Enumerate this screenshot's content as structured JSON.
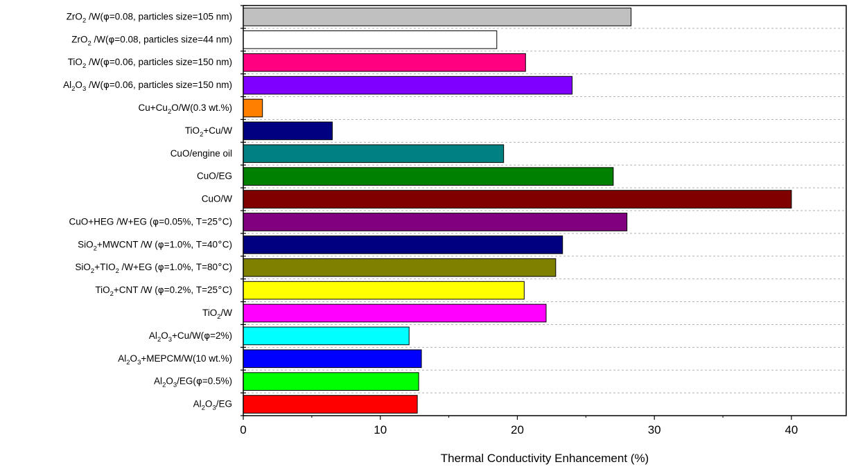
{
  "chart_data": {
    "type": "bar",
    "orientation": "horizontal",
    "xlabel": "Thermal Conductivity Enhancement (%)",
    "ylabel": "",
    "xlim": [
      0,
      44
    ],
    "xticks": [
      "0",
      "10",
      "20",
      "30",
      "40"
    ],
    "grid": "horizontal dashed",
    "legend": "none",
    "bars": [
      {
        "label": "ZrO₂/W(φ=0.08, particles size=105 nm)",
        "label_parts": [
          {
            "t": "ZrO"
          },
          {
            "t": "2",
            "sub": true
          },
          {
            "t": " /W("
          },
          {
            "t": "φ",
            "greek": true
          },
          {
            "t": "=0.08, particles size=105 nm)"
          }
        ],
        "value": 28.3,
        "color": "#c0c0c0"
      },
      {
        "label": "ZrO₂/W(φ=0.08, particles size=44 nm)",
        "label_parts": [
          {
            "t": "ZrO"
          },
          {
            "t": "2",
            "sub": true
          },
          {
            "t": " /W("
          },
          {
            "t": "φ",
            "greek": true
          },
          {
            "t": "=0.08, particles size=44 nm)"
          }
        ],
        "value": 18.5,
        "color": "#ffffff"
      },
      {
        "label": "TiO₂/W(φ=0.06, particles size=150 nm)",
        "label_parts": [
          {
            "t": "TiO"
          },
          {
            "t": "2",
            "sub": true
          },
          {
            "t": " /W("
          },
          {
            "t": "φ",
            "greek": true
          },
          {
            "t": "=0.06, particles size=150 nm)"
          }
        ],
        "value": 20.6,
        "color": "#ff0080"
      },
      {
        "label": "Al₂O₃/W(φ=0.06, particles size=150 nm)",
        "label_parts": [
          {
            "t": "Al"
          },
          {
            "t": "2",
            "sub": true
          },
          {
            "t": "O"
          },
          {
            "t": "3",
            "sub": true
          },
          {
            "t": " /W("
          },
          {
            "t": "φ",
            "greek": true
          },
          {
            "t": "=0.06, particles size=150 nm)"
          }
        ],
        "value": 24.0,
        "color": "#8000ff"
      },
      {
        "label": "Cu+Cu₂O/W(0.3 wt.%)",
        "label_parts": [
          {
            "t": "Cu+Cu"
          },
          {
            "t": "2",
            "sub": true
          },
          {
            "t": "O/W(0.3 wt.%)"
          }
        ],
        "value": 1.4,
        "color": "#ff8000"
      },
      {
        "label": "TiO₂+Cu/W",
        "label_parts": [
          {
            "t": "TiO"
          },
          {
            "t": "2",
            "sub": true
          },
          {
            "t": "+Cu/W"
          }
        ],
        "value": 6.5,
        "color": "#000080"
      },
      {
        "label": "CuO/engine oil",
        "label_parts": [
          {
            "t": "CuO/engine oil"
          }
        ],
        "value": 19.0,
        "color": "#008080"
      },
      {
        "label": "CuO/EG",
        "label_parts": [
          {
            "t": "CuO/EG"
          }
        ],
        "value": 27.0,
        "color": "#008000"
      },
      {
        "label": "CuO/W",
        "label_parts": [
          {
            "t": "CuO/W"
          }
        ],
        "value": 40.0,
        "color": "#800000"
      },
      {
        "label": "CuO+HEG/W+EG (φ=0.05%, T=25°C)",
        "label_parts": [
          {
            "t": "CuO+HEG /W+EG ("
          },
          {
            "t": "φ",
            "greek": true
          },
          {
            "t": "=0.05%, T=25"
          },
          {
            "t": "°",
            "greek": true
          },
          {
            "t": "C)"
          }
        ],
        "value": 28.0,
        "color": "#800080"
      },
      {
        "label": "SiO₂+MWCNT/W (φ=1.0%, T=40°C)",
        "label_parts": [
          {
            "t": "SiO"
          },
          {
            "t": "2",
            "sub": true
          },
          {
            "t": "+MWCNT /W ("
          },
          {
            "t": "φ",
            "greek": true
          },
          {
            "t": "=1.0%, T=40"
          },
          {
            "t": "°",
            "greek": true
          },
          {
            "t": "C)"
          }
        ],
        "value": 23.3,
        "color": "#000080"
      },
      {
        "label": "SiO₂+TIO₂/W+EG (φ=1.0%, T=80°C)",
        "label_parts": [
          {
            "t": "SiO"
          },
          {
            "t": "2",
            "sub": true
          },
          {
            "t": "+TIO"
          },
          {
            "t": "2",
            "sub": true
          },
          {
            "t": " /W+EG ("
          },
          {
            "t": "φ",
            "greek": true
          },
          {
            "t": "=1.0%, T=80"
          },
          {
            "t": "°",
            "greek": true
          },
          {
            "t": "C)"
          }
        ],
        "value": 22.8,
        "color": "#808000"
      },
      {
        "label": "TiO₂+CNT/W (φ=0.2%, T=25°C)",
        "label_parts": [
          {
            "t": "TiO"
          },
          {
            "t": "2",
            "sub": true
          },
          {
            "t": "+CNT /W ("
          },
          {
            "t": "φ",
            "greek": true
          },
          {
            "t": "=0.2%, T=25"
          },
          {
            "t": "°",
            "greek": true
          },
          {
            "t": "C)"
          }
        ],
        "value": 20.5,
        "color": "#ffff00"
      },
      {
        "label": "TiO₂/W",
        "label_parts": [
          {
            "t": "TiO"
          },
          {
            "t": "2",
            "sub": true
          },
          {
            "t": "/W"
          }
        ],
        "value": 22.1,
        "color": "#ff00ff"
      },
      {
        "label": "Al₂O₃+Cu/W(φ=2%)",
        "label_parts": [
          {
            "t": "Al"
          },
          {
            "t": "2",
            "sub": true
          },
          {
            "t": "O"
          },
          {
            "t": "3",
            "sub": true
          },
          {
            "t": "+Cu/W("
          },
          {
            "t": "φ",
            "greek": true
          },
          {
            "t": "=2%)"
          }
        ],
        "value": 12.1,
        "color": "#00ffff"
      },
      {
        "label": "Al₂O₃+MEPCM/W(10 wt.%)",
        "label_parts": [
          {
            "t": "Al"
          },
          {
            "t": "2",
            "sub": true
          },
          {
            "t": "O"
          },
          {
            "t": "3",
            "sub": true
          },
          {
            "t": "+MEPCM/W(10 wt.%)"
          }
        ],
        "value": 13.0,
        "color": "#0000ff"
      },
      {
        "label": "Al₂O₃/EG(φ=0.5%)",
        "label_parts": [
          {
            "t": "Al"
          },
          {
            "t": "2",
            "sub": true
          },
          {
            "t": "O"
          },
          {
            "t": "3",
            "sub": true
          },
          {
            "t": "/EG("
          },
          {
            "t": "φ",
            "greek": true
          },
          {
            "t": "=0.5%)"
          }
        ],
        "value": 12.8,
        "color": "#00ff00"
      },
      {
        "label": "Al₂O₃/EG",
        "label_parts": [
          {
            "t": "Al"
          },
          {
            "t": "2",
            "sub": true
          },
          {
            "t": "O"
          },
          {
            "t": "3",
            "sub": true
          },
          {
            "t": "/EG"
          }
        ],
        "value": 12.7,
        "color": "#ff0000"
      }
    ]
  }
}
